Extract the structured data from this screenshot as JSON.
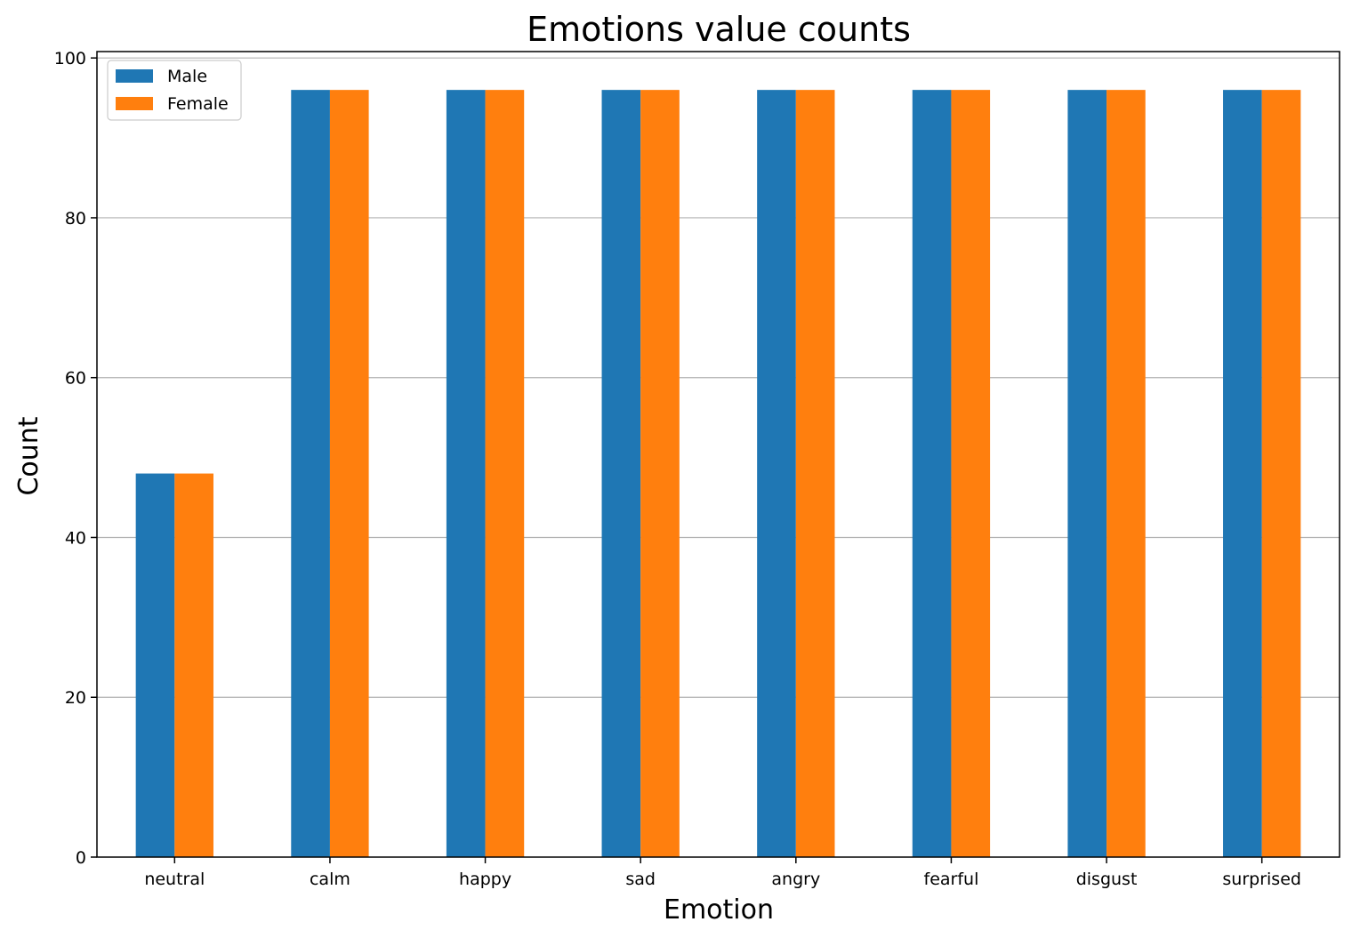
{
  "chart_data": {
    "type": "bar",
    "title": "Emotions value counts",
    "xlabel": "Emotion",
    "ylabel": "Count",
    "categories": [
      "neutral",
      "calm",
      "happy",
      "sad",
      "angry",
      "fearful",
      "disgust",
      "surprised"
    ],
    "series": [
      {
        "name": "Male",
        "color": "#1f77b4",
        "values": [
          48,
          96,
          96,
          96,
          96,
          96,
          96,
          96
        ]
      },
      {
        "name": "Female",
        "color": "#ff7f0e",
        "values": [
          48,
          96,
          96,
          96,
          96,
          96,
          96,
          96
        ]
      }
    ],
    "ylim": [
      0,
      100.8
    ],
    "yticks": [
      0,
      20,
      40,
      60,
      80,
      100
    ],
    "grid": "y",
    "legend": "top-left"
  }
}
